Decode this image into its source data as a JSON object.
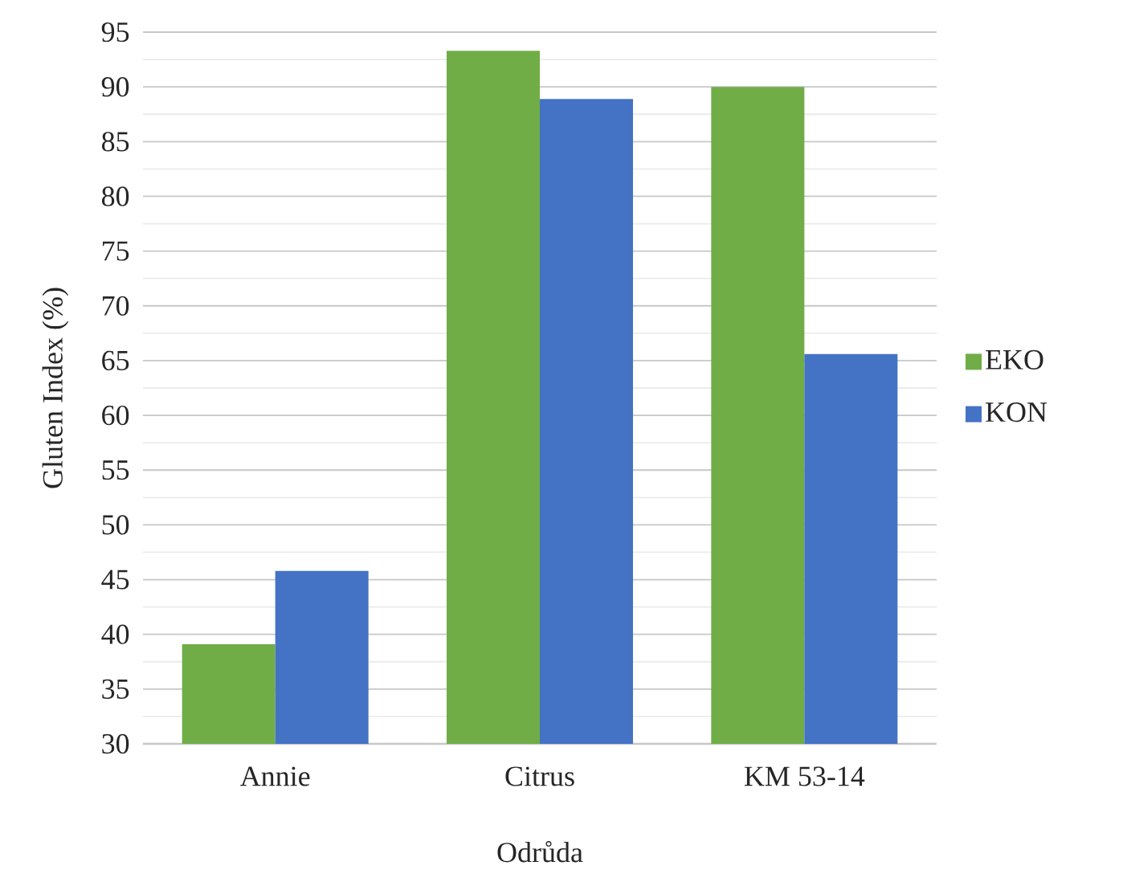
{
  "chart_data": {
    "type": "bar",
    "xlabel": "Odrůda",
    "ylabel": "Gluten Index (%)",
    "categories": [
      "Annie",
      "Citrus",
      "KM 53-14"
    ],
    "series": [
      {
        "name": "EKO",
        "color": "#70ad47",
        "values": [
          39.1,
          93.3,
          90.0
        ]
      },
      {
        "name": "KON",
        "color": "#4472c4",
        "values": [
          45.8,
          88.9,
          65.6
        ]
      }
    ],
    "ylim": [
      30,
      95
    ],
    "yticks": [
      30,
      35,
      40,
      45,
      50,
      55,
      60,
      65,
      70,
      75,
      80,
      85,
      90,
      95
    ],
    "grid": "y",
    "legend": "right"
  }
}
